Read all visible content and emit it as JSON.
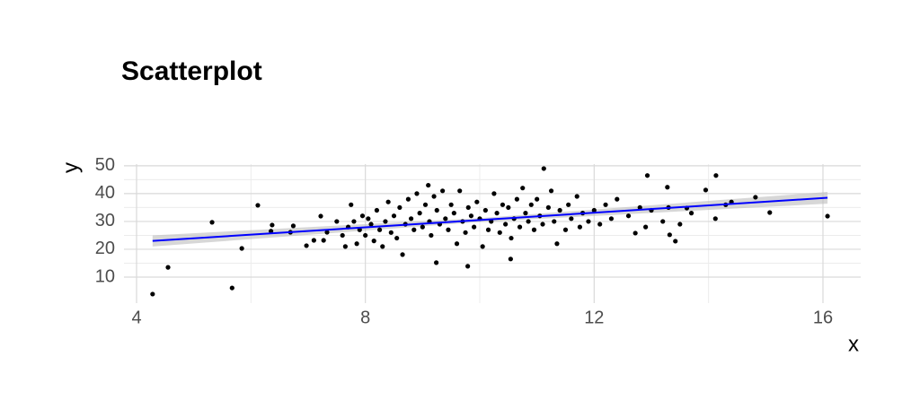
{
  "chart_data": {
    "type": "scatter",
    "title": "Scatterplot",
    "x_label": "x",
    "y_label": "y",
    "x": [
      4.28,
      4.55,
      5.32,
      5.67,
      5.84,
      6.12,
      6.37,
      6.35,
      6.69,
      6.74,
      6.97,
      7.1,
      7.22,
      7.27,
      7.33,
      7.5,
      7.6,
      7.65,
      7.7,
      7.75,
      7.8,
      7.85,
      7.9,
      7.95,
      8.0,
      8.05,
      8.1,
      8.15,
      8.2,
      8.25,
      8.3,
      8.35,
      8.4,
      8.45,
      8.5,
      8.55,
      8.6,
      8.7,
      8.75,
      8.8,
      8.85,
      8.9,
      8.95,
      9.0,
      9.05,
      9.1,
      9.12,
      9.15,
      9.2,
      9.25,
      9.3,
      9.35,
      9.4,
      9.45,
      9.5,
      9.55,
      9.6,
      9.65,
      9.7,
      9.75,
      9.8,
      9.85,
      9.9,
      9.95,
      10.0,
      10.05,
      10.1,
      10.15,
      10.2,
      10.25,
      10.3,
      10.35,
      10.4,
      10.45,
      10.5,
      10.55,
      10.6,
      10.65,
      10.7,
      10.75,
      10.8,
      10.85,
      10.9,
      10.95,
      11.0,
      11.05,
      11.1,
      11.2,
      11.25,
      11.3,
      11.35,
      11.4,
      11.5,
      11.55,
      11.6,
      11.7,
      11.75,
      11.8,
      11.9,
      12.0,
      12.1,
      12.2,
      12.3,
      12.4,
      12.6,
      12.8,
      12.9,
      13.0,
      13.2,
      13.3,
      13.5,
      13.7,
      14.3,
      14.4,
      11.12,
      12.93,
      14.13,
      13.28,
      13.95,
      14.82,
      15.07,
      16.08,
      14.12,
      13.42,
      13.32,
      12.72,
      13.62,
      9.79,
      9.24,
      10.54,
      8.65
    ],
    "values": [
      3.9,
      13.5,
      29.7,
      6.1,
      20.3,
      35.8,
      28.7,
      26.5,
      26.1,
      28.4,
      21.3,
      23.2,
      31.9,
      23.2,
      26.1,
      30,
      25,
      21,
      28,
      36,
      30,
      22,
      27,
      32,
      25,
      31,
      29,
      23,
      34,
      27,
      21,
      30,
      37,
      26,
      32,
      24,
      35,
      29,
      38,
      31,
      27,
      40,
      33,
      28,
      36,
      43,
      30,
      25,
      39,
      34,
      29,
      41,
      31,
      27,
      36,
      33,
      22,
      41,
      30,
      26,
      35,
      32,
      28,
      37,
      31,
      21,
      34,
      27,
      30,
      40,
      33,
      26,
      36,
      29,
      35,
      24,
      31,
      38,
      28,
      42,
      33,
      30,
      36,
      27,
      38,
      32,
      29,
      35,
      41,
      30,
      22,
      34,
      27,
      36,
      31,
      39,
      28,
      33,
      30,
      34,
      29,
      36,
      31,
      38,
      32,
      35,
      28,
      34,
      30,
      35,
      29,
      33,
      36,
      37,
      49,
      46.5,
      46.5,
      42.3,
      41.3,
      38.7,
      33.2,
      31.9,
      31,
      22.9,
      25.2,
      25.8,
      34.8,
      13.9,
      15.2,
      16.5,
      18.1
    ],
    "color": "#000000",
    "fit": {
      "x": [
        4.28,
        10,
        16.08
      ],
      "values": [
        23.0,
        30.5,
        38.5
      ],
      "lower": [
        21.0,
        29.8,
        36.4
      ],
      "upper": [
        25.0,
        31.2,
        40.6
      ],
      "color": "#0000ff",
      "band_color": "#bdbdbd"
    },
    "xlim": [
      3.78,
      16.66
    ],
    "ylim": [
      0.65,
      50.6
    ],
    "xticks": [
      4,
      8,
      12,
      16
    ],
    "yticks": [
      10,
      20,
      30,
      40,
      50
    ],
    "x_minor_grid": [
      6,
      10,
      14
    ],
    "y_minor_grid": [
      15,
      25,
      35,
      45
    ],
    "grid": true
  }
}
